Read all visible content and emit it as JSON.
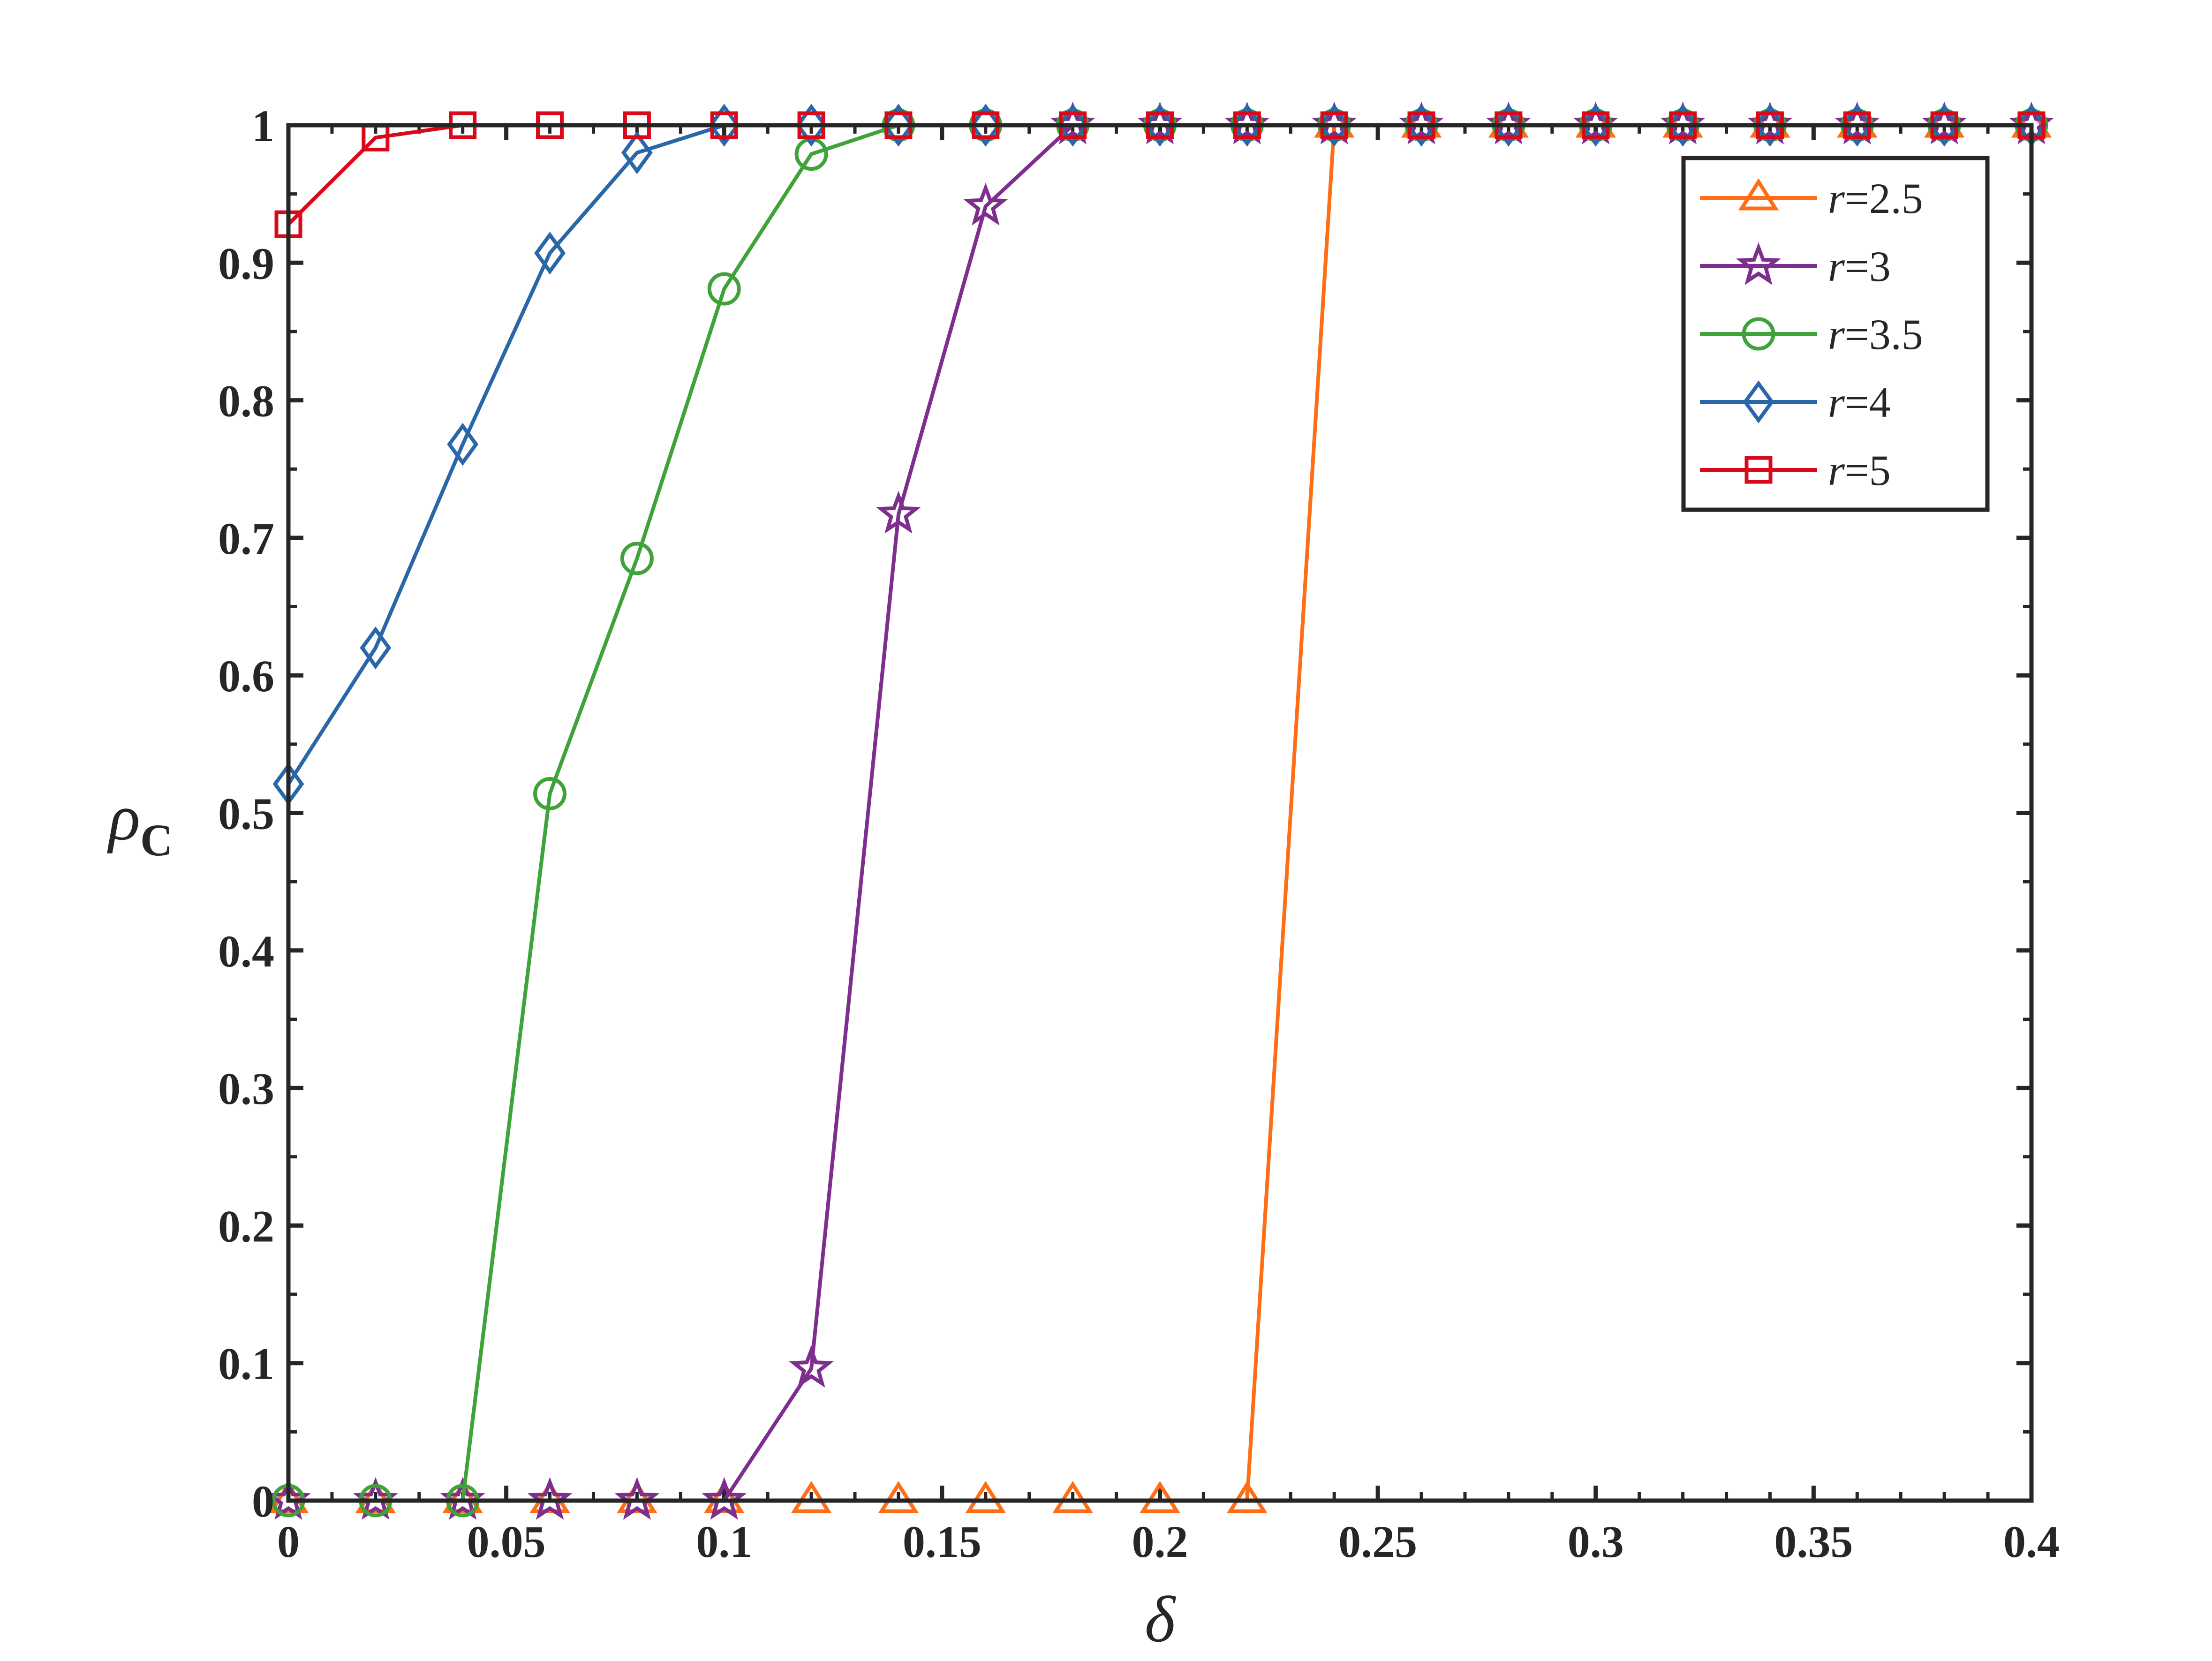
{
  "chart_data": {
    "type": "line",
    "title": "",
    "xlabel": "δ",
    "ylabel": "ρ",
    "ylabel_sub": "C",
    "xlim": [
      0,
      0.4
    ],
    "ylim": [
      0,
      1
    ],
    "x_ticks": [
      0,
      0.05,
      0.1,
      0.15,
      0.2,
      0.25,
      0.3,
      0.35,
      0.4
    ],
    "x_tick_labels": [
      "0",
      "0.05",
      "0.1",
      "0.15",
      "0.2",
      "0.25",
      "0.3",
      "0.35",
      "0.4"
    ],
    "y_ticks": [
      0,
      0.1,
      0.2,
      0.3,
      0.4,
      0.5,
      0.6,
      0.7,
      0.8,
      0.9,
      1
    ],
    "y_tick_labels": [
      "0",
      "0.1",
      "0.2",
      "0.3",
      "0.4",
      "0.5",
      "0.6",
      "0.7",
      "0.8",
      "0.9",
      "1"
    ],
    "grid": false,
    "legend_position": "top-right",
    "x": [
      0,
      0.02,
      0.04,
      0.06,
      0.08,
      0.1,
      0.12,
      0.14,
      0.16,
      0.18,
      0.2,
      0.22,
      0.24,
      0.26,
      0.28,
      0.3,
      0.32,
      0.34,
      0.36,
      0.38,
      0.4
    ],
    "series": [
      {
        "name": "r=2.5",
        "legend_italic": "r",
        "legend_rest": "=2.5",
        "color": "#FF6E14",
        "marker": "triangle",
        "values": [
          0,
          0,
          0,
          0,
          0,
          0,
          0,
          0,
          0,
          0,
          0,
          0,
          1,
          1,
          1,
          1,
          1,
          1,
          1,
          1,
          1
        ]
      },
      {
        "name": "r=3",
        "legend_italic": "r",
        "legend_rest": "=3",
        "color": "#7E2F8E",
        "marker": "star",
        "values": [
          0,
          0,
          0,
          0,
          0,
          0,
          0.096,
          0.717,
          0.941,
          1,
          1,
          1,
          1,
          1,
          1,
          1,
          1,
          1,
          1,
          1,
          1
        ]
      },
      {
        "name": "r=3.5",
        "legend_italic": "r",
        "legend_rest": "=3.5",
        "color": "#3FA33A",
        "marker": "circle",
        "values": [
          0,
          0,
          0,
          0.514,
          0.685,
          0.881,
          0.979,
          1,
          1,
          1,
          1,
          1,
          1,
          1,
          1,
          1,
          1,
          1,
          1,
          1,
          1
        ]
      },
      {
        "name": "r=4",
        "legend_italic": "r",
        "legend_rest": "=4",
        "color": "#2A67A8",
        "marker": "diamond",
        "values": [
          0.521,
          0.62,
          0.768,
          0.907,
          0.98,
          1,
          1,
          1,
          1,
          1,
          1,
          1,
          1,
          1,
          1,
          1,
          1,
          1,
          1,
          1,
          1
        ]
      },
      {
        "name": "r=5",
        "legend_italic": "r",
        "legend_rest": "=5",
        "color": "#D9091C",
        "marker": "square",
        "values": [
          0.928,
          0.991,
          1,
          1,
          1,
          1,
          1,
          1,
          1,
          1,
          1,
          1,
          1,
          1,
          1,
          1,
          1,
          1,
          1,
          1,
          1
        ]
      }
    ]
  }
}
